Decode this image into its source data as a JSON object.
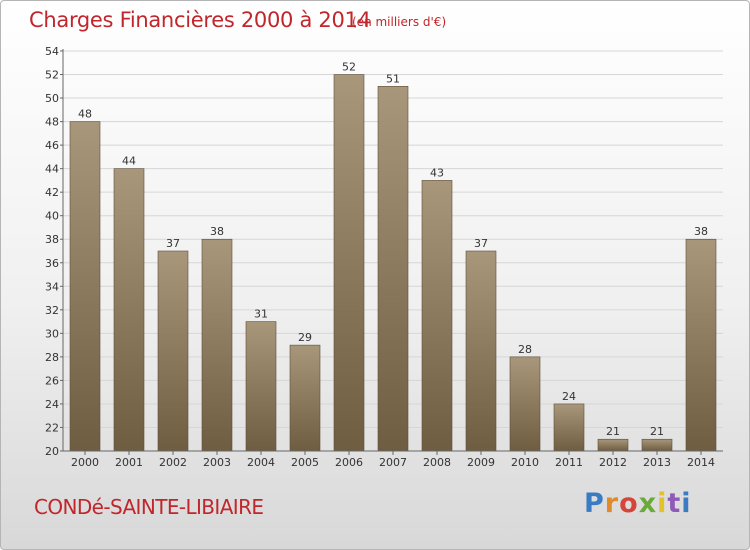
{
  "chart_data": {
    "type": "bar",
    "title": "Charges Financières 2000 à 2014",
    "subtitle": "(en milliers d'€)",
    "categories": [
      "2000",
      "2001",
      "2002",
      "2003",
      "2004",
      "2005",
      "2006",
      "2007",
      "2008",
      "2009",
      "2010",
      "2011",
      "2012",
      "2013",
      "2014"
    ],
    "values": [
      48,
      44,
      37,
      38,
      31,
      29,
      52,
      51,
      43,
      37,
      28,
      24,
      21,
      21,
      38
    ],
    "ylim": [
      20,
      54
    ],
    "yticks": [
      20,
      22,
      24,
      26,
      28,
      30,
      32,
      34,
      36,
      38,
      40,
      42,
      44,
      46,
      48,
      50,
      52,
      54
    ],
    "grid": true,
    "bar_color": "#8f7a5c"
  },
  "footer": {
    "commune": "CONDé-SAINTE-LIBIAIRE",
    "logo_text": "Proxiti"
  },
  "colors": {
    "title": "#c0262b",
    "grid": "#d6d6d6"
  }
}
